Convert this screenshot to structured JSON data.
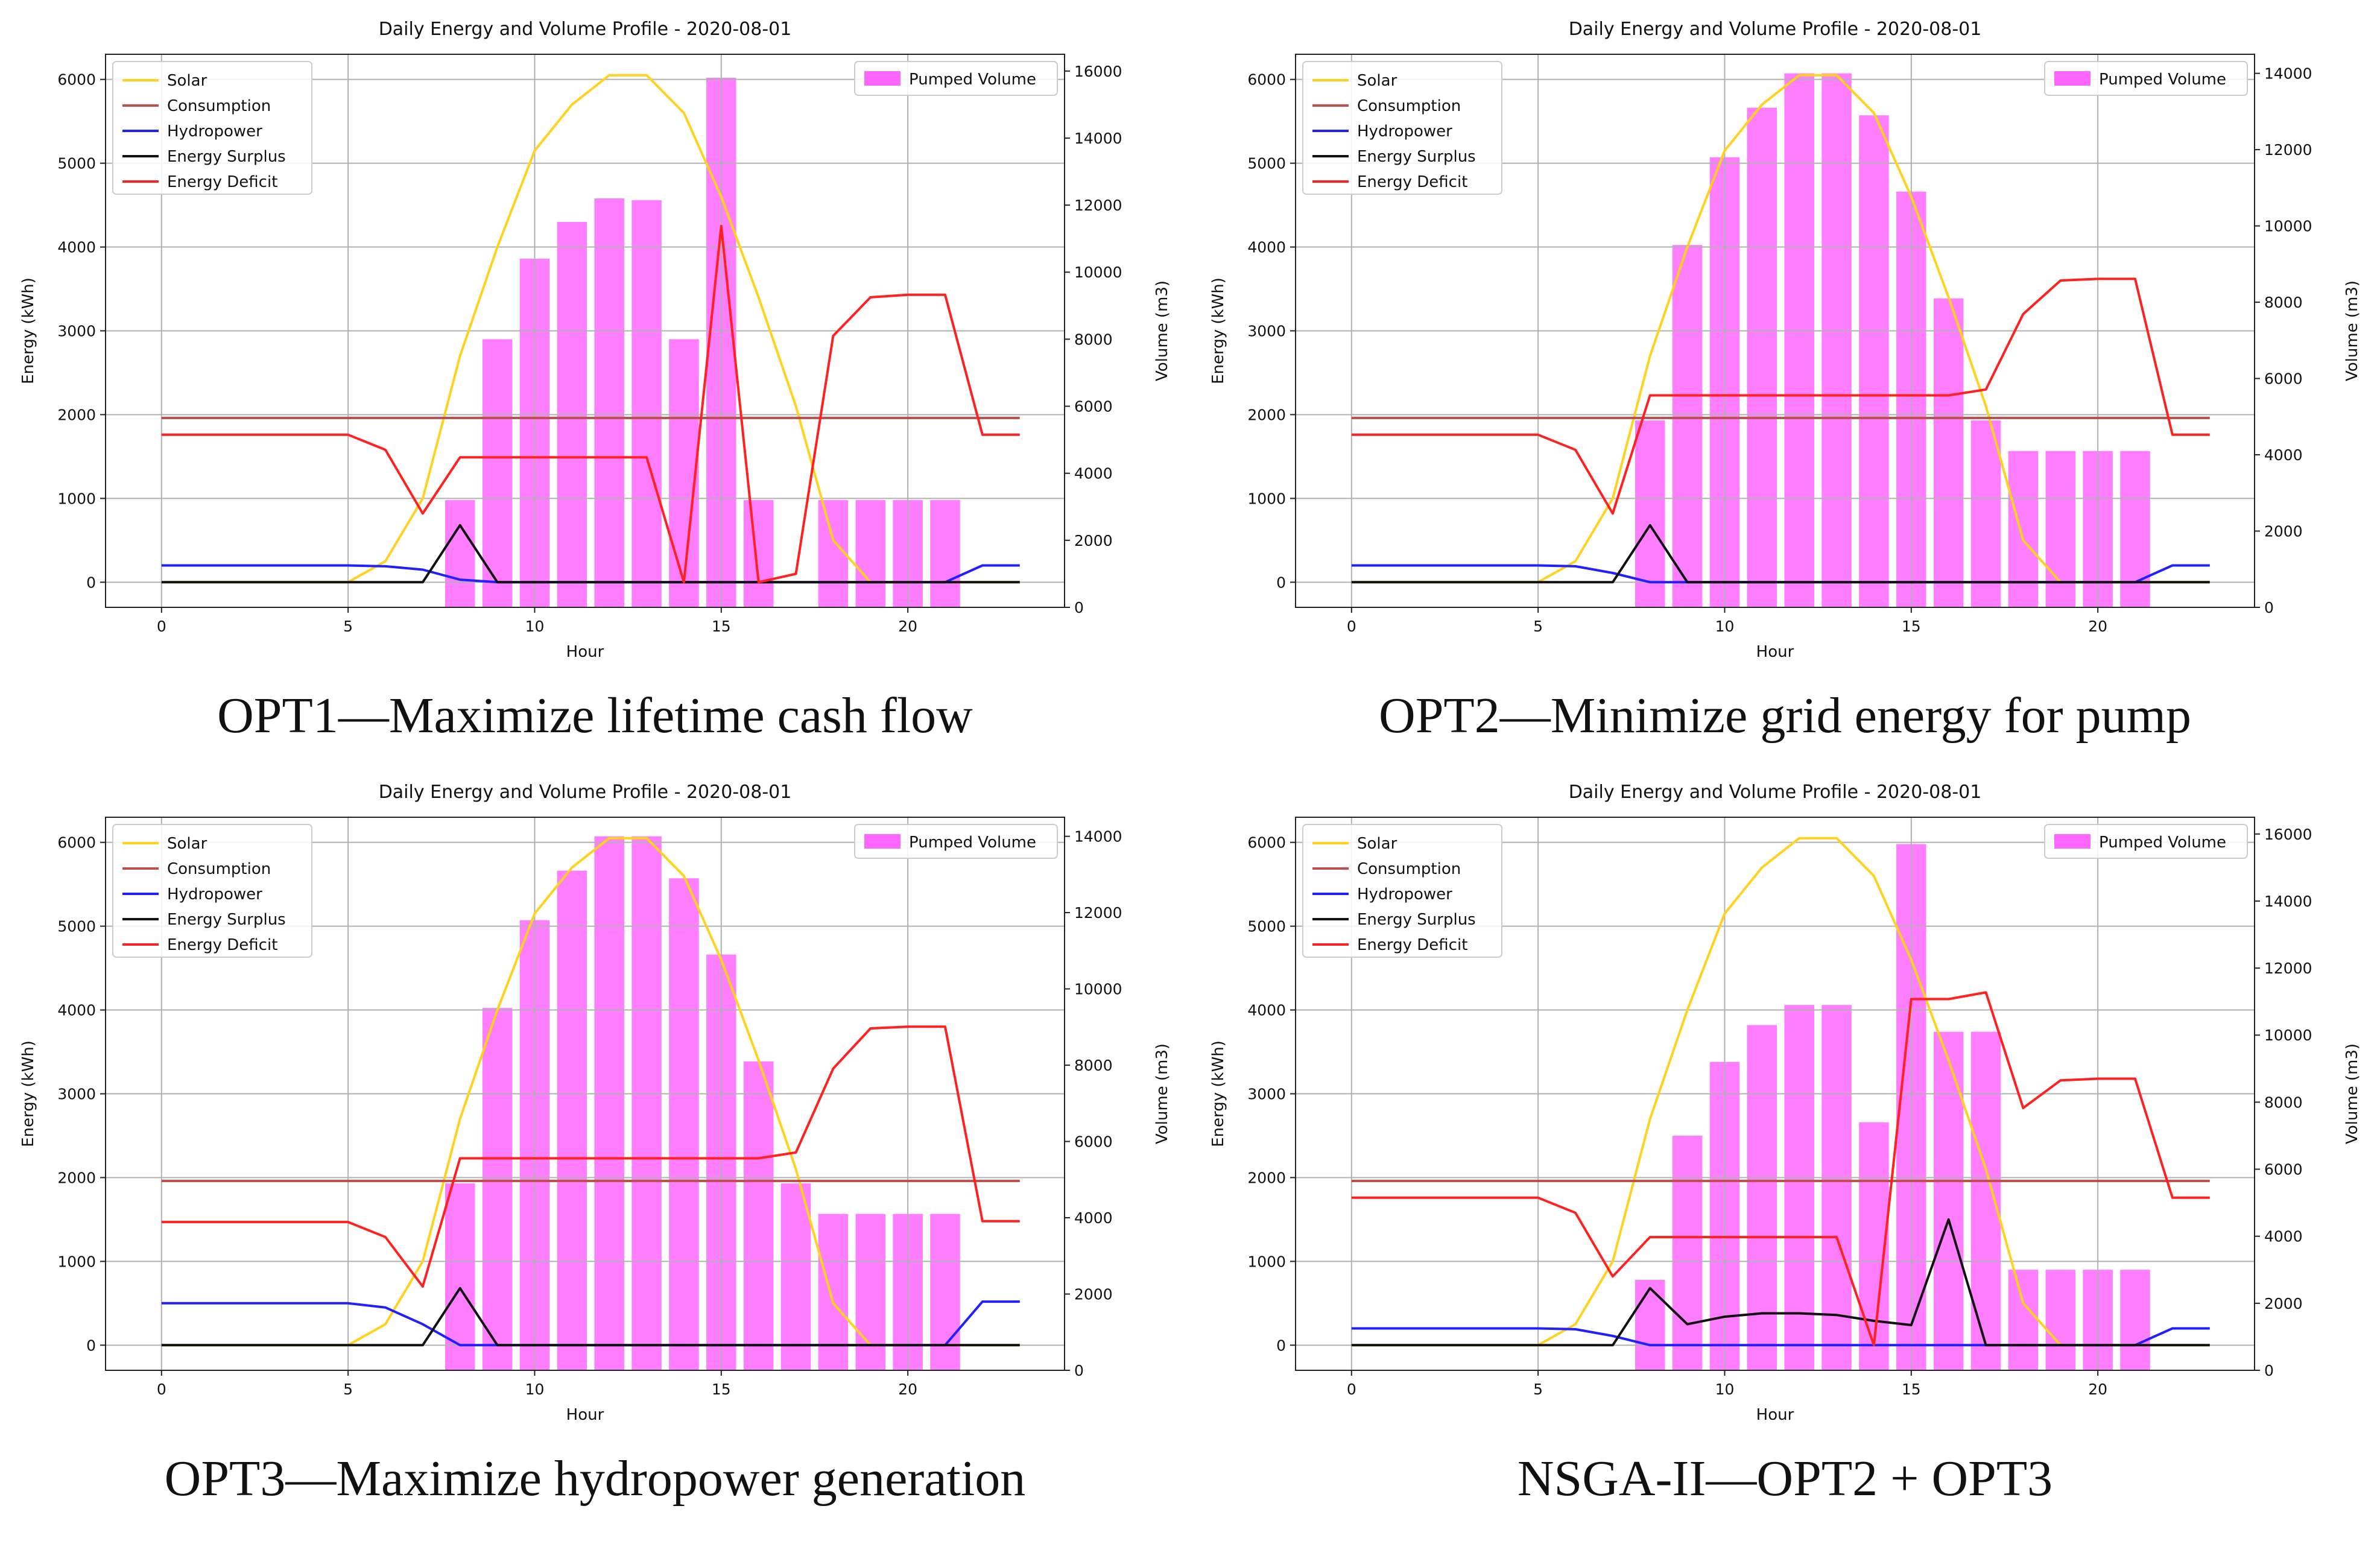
{
  "chart_data": [
    {
      "type": "line+bar",
      "title": "Daily Energy and Volume Profile - 2020-08-01",
      "caption": "OPT1—Maximize lifetime cash flow",
      "xlabel": "Hour",
      "ylabel": "Energy (kWh)",
      "y2label": "Volume (m3)",
      "xlim": [
        -1.5,
        24.2
      ],
      "ylim": [
        -300,
        6300
      ],
      "y2lim": [
        0,
        16500
      ],
      "xticks": [
        0,
        5,
        10,
        15,
        20
      ],
      "yticks": [
        0,
        1000,
        2000,
        3000,
        4000,
        5000,
        6000
      ],
      "y2ticks": [
        0,
        2000,
        4000,
        6000,
        8000,
        10000,
        12000,
        14000,
        16000
      ],
      "grid": true,
      "x": [
        0,
        1,
        2,
        3,
        4,
        5,
        6,
        7,
        8,
        9,
        10,
        11,
        12,
        13,
        14,
        15,
        16,
        17,
        18,
        19,
        20,
        21,
        22,
        23
      ],
      "series": [
        {
          "name": "Solar",
          "color": "#ffd21f",
          "values": [
            0,
            0,
            0,
            0,
            0,
            0,
            250,
            1000,
            2700,
            4000,
            5150,
            5700,
            6050,
            6050,
            5600,
            4600,
            3400,
            2100,
            500,
            0,
            0,
            0,
            0,
            0
          ]
        },
        {
          "name": "Consumption",
          "color": "#c0504d",
          "values": [
            1960,
            1960,
            1960,
            1960,
            1960,
            1960,
            1960,
            1960,
            1960,
            1960,
            1960,
            1960,
            1960,
            1960,
            1960,
            1960,
            1960,
            1960,
            1960,
            1960,
            1960,
            1960,
            1960,
            1960
          ]
        },
        {
          "name": "Hydropower",
          "color": "#1f1fff",
          "values": [
            200,
            200,
            200,
            200,
            200,
            200,
            190,
            150,
            30,
            0,
            0,
            0,
            0,
            0,
            0,
            0,
            0,
            0,
            0,
            0,
            0,
            0,
            200,
            200
          ]
        },
        {
          "name": "Energy Surplus",
          "color": "#111111",
          "values": [
            0,
            0,
            0,
            0,
            0,
            0,
            0,
            0,
            680,
            0,
            0,
            0,
            0,
            0,
            0,
            0,
            0,
            0,
            0,
            0,
            0,
            0,
            0,
            0
          ]
        },
        {
          "name": "Energy Deficit",
          "color": "#ff2020",
          "values": [
            1760,
            1760,
            1760,
            1760,
            1760,
            1760,
            1580,
            820,
            1490,
            1490,
            1490,
            1490,
            1490,
            1490,
            0,
            4250,
            0,
            100,
            2940,
            3400,
            3430,
            3430,
            1760,
            1760
          ]
        }
      ],
      "bars": {
        "name": "Pumped Volume",
        "color": "#ff66ff",
        "x": [
          8,
          9,
          10,
          11,
          12,
          13,
          14,
          15,
          16,
          18,
          19,
          20,
          21
        ],
        "values": [
          3200,
          8000,
          10400,
          11500,
          12200,
          12150,
          8000,
          15800,
          3200,
          3200,
          3200,
          3200,
          3200
        ]
      }
    },
    {
      "type": "line+bar",
      "title": "Daily Energy and Volume Profile - 2020-08-01",
      "caption": "OPT2—Minimize grid energy for pump",
      "xlabel": "Hour",
      "ylabel": "Energy (kWh)",
      "y2label": "Volume (m3)",
      "xlim": [
        -1.5,
        24.2
      ],
      "ylim": [
        -300,
        6300
      ],
      "y2lim": [
        0,
        14500
      ],
      "xticks": [
        0,
        5,
        10,
        15,
        20
      ],
      "yticks": [
        0,
        1000,
        2000,
        3000,
        4000,
        5000,
        6000
      ],
      "y2ticks": [
        0,
        2000,
        4000,
        6000,
        8000,
        10000,
        12000,
        14000
      ],
      "grid": true,
      "x": [
        0,
        1,
        2,
        3,
        4,
        5,
        6,
        7,
        8,
        9,
        10,
        11,
        12,
        13,
        14,
        15,
        16,
        17,
        18,
        19,
        20,
        21,
        22,
        23
      ],
      "series": [
        {
          "name": "Solar",
          "color": "#ffd21f",
          "values": [
            0,
            0,
            0,
            0,
            0,
            0,
            250,
            1000,
            2700,
            4000,
            5150,
            5700,
            6050,
            6050,
            5600,
            4600,
            3400,
            2100,
            500,
            0,
            0,
            0,
            0,
            0
          ]
        },
        {
          "name": "Consumption",
          "color": "#c0504d",
          "values": [
            1960,
            1960,
            1960,
            1960,
            1960,
            1960,
            1960,
            1960,
            1960,
            1960,
            1960,
            1960,
            1960,
            1960,
            1960,
            1960,
            1960,
            1960,
            1960,
            1960,
            1960,
            1960,
            1960,
            1960
          ]
        },
        {
          "name": "Hydropower",
          "color": "#1f1fff",
          "values": [
            200,
            200,
            200,
            200,
            200,
            200,
            190,
            110,
            0,
            0,
            0,
            0,
            0,
            0,
            0,
            0,
            0,
            0,
            0,
            0,
            0,
            0,
            200,
            200
          ]
        },
        {
          "name": "Energy Surplus",
          "color": "#111111",
          "values": [
            0,
            0,
            0,
            0,
            0,
            0,
            0,
            0,
            680,
            0,
            0,
            0,
            0,
            0,
            0,
            0,
            0,
            0,
            0,
            0,
            0,
            0,
            0,
            0
          ]
        },
        {
          "name": "Energy Deficit",
          "color": "#ff2020",
          "values": [
            1760,
            1760,
            1760,
            1760,
            1760,
            1760,
            1580,
            820,
            2230,
            2230,
            2230,
            2230,
            2230,
            2230,
            2230,
            2230,
            2230,
            2300,
            3200,
            3600,
            3620,
            3620,
            1760,
            1760
          ]
        }
      ],
      "bars": {
        "name": "Pumped Volume",
        "color": "#ff66ff",
        "x": [
          8,
          9,
          10,
          11,
          12,
          13,
          14,
          15,
          16,
          17,
          18,
          19,
          20,
          21
        ],
        "values": [
          4900,
          9500,
          11800,
          13100,
          14000,
          14000,
          12900,
          10900,
          8100,
          4900,
          4100,
          4100,
          4100,
          4100
        ]
      }
    },
    {
      "type": "line+bar",
      "title": "Daily Energy and Volume Profile - 2020-08-01",
      "caption": "OPT3—Maximize hydropower generation",
      "xlabel": "Hour",
      "ylabel": "Energy (kWh)",
      "y2label": "Volume (m3)",
      "xlim": [
        -1.5,
        24.2
      ],
      "ylim": [
        -300,
        6300
      ],
      "y2lim": [
        0,
        14500
      ],
      "xticks": [
        0,
        5,
        10,
        15,
        20
      ],
      "yticks": [
        0,
        1000,
        2000,
        3000,
        4000,
        5000,
        6000
      ],
      "y2ticks": [
        0,
        2000,
        4000,
        6000,
        8000,
        10000,
        12000,
        14000
      ],
      "grid": true,
      "x": [
        0,
        1,
        2,
        3,
        4,
        5,
        6,
        7,
        8,
        9,
        10,
        11,
        12,
        13,
        14,
        15,
        16,
        17,
        18,
        19,
        20,
        21,
        22,
        23
      ],
      "series": [
        {
          "name": "Solar",
          "color": "#ffd21f",
          "values": [
            0,
            0,
            0,
            0,
            0,
            0,
            250,
            1000,
            2700,
            4000,
            5150,
            5700,
            6050,
            6050,
            5600,
            4600,
            3400,
            2100,
            500,
            0,
            0,
            0,
            0,
            0
          ]
        },
        {
          "name": "Consumption",
          "color": "#c0504d",
          "values": [
            1960,
            1960,
            1960,
            1960,
            1960,
            1960,
            1960,
            1960,
            1960,
            1960,
            1960,
            1960,
            1960,
            1960,
            1960,
            1960,
            1960,
            1960,
            1960,
            1960,
            1960,
            1960,
            1960,
            1960
          ]
        },
        {
          "name": "Hydropower",
          "color": "#1f1fff",
          "values": [
            500,
            500,
            500,
            500,
            500,
            500,
            450,
            250,
            0,
            0,
            0,
            0,
            0,
            0,
            0,
            0,
            0,
            0,
            0,
            0,
            0,
            0,
            520,
            520
          ]
        },
        {
          "name": "Energy Surplus",
          "color": "#111111",
          "values": [
            0,
            0,
            0,
            0,
            0,
            0,
            0,
            0,
            680,
            0,
            0,
            0,
            0,
            0,
            0,
            0,
            0,
            0,
            0,
            0,
            0,
            0,
            0,
            0
          ]
        },
        {
          "name": "Energy Deficit",
          "color": "#ff2020",
          "values": [
            1470,
            1470,
            1470,
            1470,
            1470,
            1470,
            1290,
            700,
            2230,
            2230,
            2230,
            2230,
            2230,
            2230,
            2230,
            2230,
            2230,
            2300,
            3300,
            3780,
            3800,
            3800,
            1480,
            1480
          ]
        }
      ],
      "bars": {
        "name": "Pumped Volume",
        "color": "#ff66ff",
        "x": [
          8,
          9,
          10,
          11,
          12,
          13,
          14,
          15,
          16,
          17,
          18,
          19,
          20,
          21
        ],
        "values": [
          4900,
          9500,
          11800,
          13100,
          14000,
          14000,
          12900,
          10900,
          8100,
          4900,
          4100,
          4100,
          4100,
          4100
        ]
      }
    },
    {
      "type": "line+bar",
      "title": "Daily Energy and Volume Profile - 2020-08-01",
      "caption": "NSGA-II—OPT2 + OPT3",
      "xlabel": "Hour",
      "ylabel": "Energy (kWh)",
      "y2label": "Volume (m3)",
      "xlim": [
        -1.5,
        24.2
      ],
      "ylim": [
        -300,
        6300
      ],
      "y2lim": [
        0,
        16500
      ],
      "xticks": [
        0,
        5,
        10,
        15,
        20
      ],
      "yticks": [
        0,
        1000,
        2000,
        3000,
        4000,
        5000,
        6000
      ],
      "y2ticks": [
        0,
        2000,
        4000,
        6000,
        8000,
        10000,
        12000,
        14000,
        16000
      ],
      "grid": true,
      "x": [
        0,
        1,
        2,
        3,
        4,
        5,
        6,
        7,
        8,
        9,
        10,
        11,
        12,
        13,
        14,
        15,
        16,
        17,
        18,
        19,
        20,
        21,
        22,
        23
      ],
      "series": [
        {
          "name": "Solar",
          "color": "#ffd21f",
          "values": [
            0,
            0,
            0,
            0,
            0,
            0,
            250,
            1000,
            2700,
            4000,
            5150,
            5700,
            6050,
            6050,
            5600,
            4600,
            3400,
            2100,
            500,
            0,
            0,
            0,
            0,
            0
          ]
        },
        {
          "name": "Consumption",
          "color": "#c0504d",
          "values": [
            1960,
            1960,
            1960,
            1960,
            1960,
            1960,
            1960,
            1960,
            1960,
            1960,
            1960,
            1960,
            1960,
            1960,
            1960,
            1960,
            1960,
            1960,
            1960,
            1960,
            1960,
            1960,
            1960,
            1960
          ]
        },
        {
          "name": "Hydropower",
          "color": "#1f1fff",
          "values": [
            200,
            200,
            200,
            200,
            200,
            200,
            190,
            110,
            0,
            0,
            0,
            0,
            0,
            0,
            0,
            0,
            0,
            0,
            0,
            0,
            0,
            0,
            200,
            200
          ]
        },
        {
          "name": "Energy Surplus",
          "color": "#111111",
          "values": [
            0,
            0,
            0,
            0,
            0,
            0,
            0,
            0,
            680,
            250,
            340,
            380,
            380,
            360,
            290,
            240,
            1500,
            0,
            0,
            0,
            0,
            0,
            0,
            0
          ]
        },
        {
          "name": "Energy Deficit",
          "color": "#ff2020",
          "values": [
            1760,
            1760,
            1760,
            1760,
            1760,
            1760,
            1580,
            820,
            1290,
            1290,
            1290,
            1290,
            1290,
            1290,
            0,
            4130,
            4130,
            4210,
            2830,
            3160,
            3180,
            3180,
            1760,
            1760
          ]
        }
      ],
      "bars": {
        "name": "Pumped Volume",
        "color": "#ff66ff",
        "x": [
          8,
          9,
          10,
          11,
          12,
          13,
          14,
          15,
          16,
          17,
          18,
          19,
          20,
          21
        ],
        "values": [
          2700,
          7000,
          9200,
          10300,
          10900,
          10900,
          7400,
          15700,
          10100,
          10100,
          3000,
          3000,
          3000,
          3000
        ]
      }
    }
  ]
}
